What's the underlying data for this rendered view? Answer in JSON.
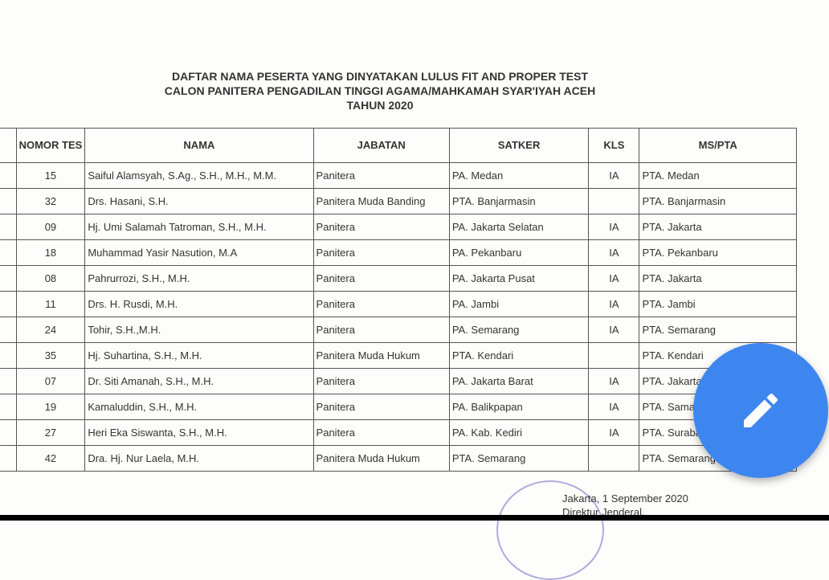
{
  "title": [
    "DAFTAR NAMA PESERTA YANG DINYATAKAN LULUS FIT AND PROPER TEST",
    "CALON PANITERA PENGADILAN TINGGI AGAMA/MAHKAMAH SYAR'IYAH ACEH",
    "TAHUN 2020"
  ],
  "headers": {
    "nomor": "NOMOR TES",
    "nama": "NAMA",
    "jabatan": "JABATAN",
    "satker": "SATKER",
    "kls": "KLS",
    "mspta": "MS/PTA"
  },
  "rows": [
    [
      "15",
      "Saiful Alamsyah, S.Ag., S.H., M.H., M.M.",
      "Panitera",
      "PA. Medan",
      "IA",
      "PTA. Medan"
    ],
    [
      "32",
      "Drs. Hasani, S.H.",
      "Panitera Muda Banding",
      "PTA. Banjarmasin",
      "",
      "PTA. Banjarmasin"
    ],
    [
      "09",
      "Hj. Umi Salamah Tatroman, S.H., M.H.",
      "Panitera",
      "PA. Jakarta Selatan",
      "IA",
      "PTA. Jakarta"
    ],
    [
      "18",
      "Muhammad Yasir Nasution, M.A",
      "Panitera",
      "PA. Pekanbaru",
      "IA",
      "PTA. Pekanbaru"
    ],
    [
      "08",
      "Pahrurrozi, S.H., M.H.",
      "Panitera",
      "PA. Jakarta Pusat",
      "IA",
      "PTA. Jakarta"
    ],
    [
      "11",
      "Drs. H. Rusdi, M.H.",
      "Panitera",
      "PA. Jambi",
      "IA",
      "PTA. Jambi"
    ],
    [
      "24",
      "Tohir, S.H.,M.H.",
      "Panitera",
      "PA. Semarang",
      "IA",
      "PTA. Semarang"
    ],
    [
      "35",
      "Hj. Suhartina, S.H., M.H.",
      "Panitera Muda Hukum",
      "PTA. Kendari",
      "",
      "PTA. Kendari"
    ],
    [
      "07",
      "Dr. Siti Amanah, S.H., M.H.",
      "Panitera",
      "PA. Jakarta Barat",
      "IA",
      "PTA. Jakarta"
    ],
    [
      "19",
      "Kamaluddin, S.H., M.H.",
      "Panitera",
      "PA. Balikpapan",
      "IA",
      "PTA. Samar"
    ],
    [
      "27",
      "Heri Eka Siswanta, S.H., M.H.",
      "Panitera",
      "PA. Kab. Kediri",
      "IA",
      "PTA. Suraba"
    ],
    [
      "42",
      "Dra. Hj. Nur Laela, M.H.",
      "Panitera Muda Hukum",
      "PTA. Semarang",
      "",
      "PTA. Semarang"
    ]
  ],
  "signature": {
    "place_date": "Jakarta, 1 September 2020",
    "role": "Direktur Jenderal,"
  },
  "fab": {
    "icon": "pencil-icon",
    "color": "#3d86f0"
  }
}
